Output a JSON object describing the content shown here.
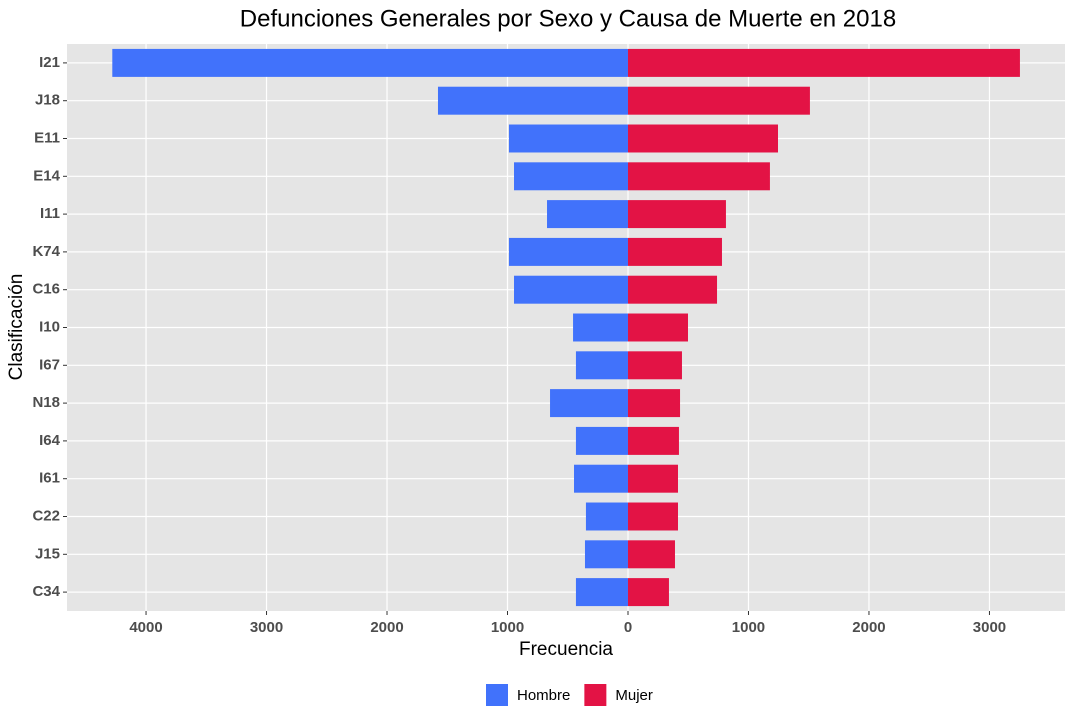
{
  "chart_data": {
    "type": "bar",
    "orientation": "horizontal",
    "title": "Defunciones Generales por Sexo y Causa de Muerte en 2018",
    "x_label": "Frecuencia",
    "y_label": "Clasificación",
    "categories": [
      "I21",
      "J18",
      "E11",
      "E14",
      "I11",
      "K74",
      "C16",
      "I10",
      "I67",
      "N18",
      "I64",
      "I61",
      "C22",
      "J15",
      "C34"
    ],
    "series": [
      {
        "name": "Hombre",
        "color": "#4172fb",
        "values": [
          -4280,
          -1577,
          -988,
          -946,
          -672,
          -988,
          -946,
          -456,
          -432,
          -647,
          -432,
          -448,
          -349,
          -357,
          -432
        ]
      },
      {
        "name": "Mujer",
        "color": "#e31345",
        "values": [
          3253,
          1510,
          1245,
          1178,
          813,
          780,
          739,
          498,
          448,
          432,
          423,
          415,
          415,
          390,
          340
        ]
      }
    ],
    "xlim": [
      -4656,
      3627
    ],
    "xticks": [
      {
        "value": -4000,
        "label": "4000"
      },
      {
        "value": -3000,
        "label": "3000"
      },
      {
        "value": -2000,
        "label": "2000"
      },
      {
        "value": -1000,
        "label": "1000"
      },
      0,
      1000,
      2000,
      3000
    ],
    "grid": true,
    "legend": "bottom"
  }
}
